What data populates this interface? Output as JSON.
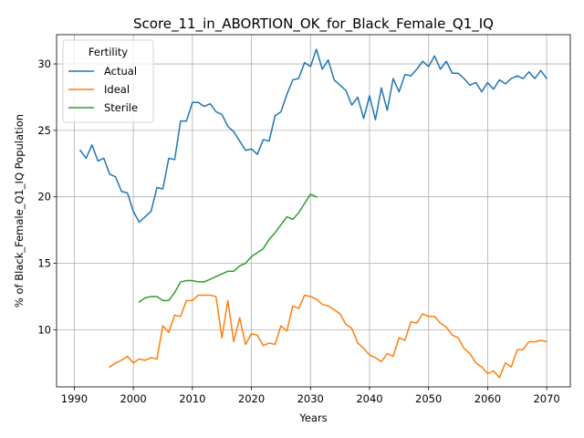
{
  "chart_data": {
    "type": "line",
    "title": "Score_11_in_ABORTION_OK_for_Black_Female_Q1_IQ",
    "xlabel": "Years",
    "ylabel": "% of Black_Female_Q1_IQ Population",
    "xlim": [
      1987,
      2074
    ],
    "ylim": [
      5.7,
      32.2
    ],
    "xticks": [
      1990,
      2000,
      2010,
      2020,
      2030,
      2040,
      2050,
      2060,
      2070
    ],
    "yticks": [
      10,
      15,
      20,
      25,
      30
    ],
    "grid": true,
    "legend": {
      "title": "Fertility",
      "position": "upper-left"
    },
    "series": [
      {
        "name": "Actual",
        "color": "#1f77b4",
        "x": [
          1991,
          1992,
          1993,
          1994,
          1995,
          1996,
          1997,
          1998,
          1999,
          2000,
          2001,
          2002,
          2003,
          2004,
          2005,
          2006,
          2007,
          2008,
          2009,
          2010,
          2011,
          2012,
          2013,
          2014,
          2015,
          2016,
          2017,
          2018,
          2019,
          2020,
          2021,
          2022,
          2023,
          2024,
          2025,
          2026,
          2027,
          2028,
          2029,
          2030,
          2031,
          2032,
          2033,
          2034,
          2035,
          2036,
          2037,
          2038,
          2039,
          2040,
          2041,
          2042,
          2043,
          2044,
          2045,
          2046,
          2047,
          2048,
          2049,
          2050,
          2051,
          2052,
          2053,
          2054,
          2055,
          2056,
          2057,
          2058,
          2059,
          2060,
          2061,
          2062,
          2063,
          2064,
          2065,
          2066,
          2067,
          2068,
          2069,
          2070
        ],
        "values": [
          23.5,
          22.9,
          23.9,
          22.7,
          22.9,
          21.7,
          21.5,
          20.4,
          20.3,
          18.9,
          18.1,
          18.5,
          18.9,
          20.7,
          20.6,
          22.9,
          22.8,
          25.7,
          25.7,
          27.1,
          27.1,
          26.8,
          27.0,
          26.4,
          26.2,
          25.3,
          24.9,
          24.2,
          23.5,
          23.6,
          23.2,
          24.3,
          24.2,
          26.1,
          26.4,
          27.7,
          28.8,
          28.9,
          30.1,
          29.8,
          31.1,
          29.6,
          30.3,
          28.8,
          28.4,
          28.0,
          26.9,
          27.5,
          25.9,
          27.6,
          25.8,
          28.2,
          26.5,
          28.9,
          27.9,
          29.2,
          29.1,
          29.6,
          30.2,
          29.8,
          30.6,
          29.6,
          30.2,
          29.3,
          29.3,
          28.9,
          28.4,
          28.6,
          27.9,
          28.6,
          28.1,
          28.8,
          28.5,
          28.9,
          29.1,
          28.9,
          29.4,
          28.9,
          29.5,
          28.9
        ]
      },
      {
        "name": "Ideal",
        "color": "#ff7f0e",
        "x": [
          1996,
          1997,
          1998,
          1999,
          2000,
          2001,
          2002,
          2003,
          2004,
          2005,
          2006,
          2007,
          2008,
          2009,
          2010,
          2011,
          2012,
          2013,
          2014,
          2015,
          2016,
          2017,
          2018,
          2019,
          2020,
          2021,
          2022,
          2023,
          2024,
          2025,
          2026,
          2027,
          2028,
          2029,
          2030,
          2031,
          2032,
          2033,
          2034,
          2035,
          2036,
          2037,
          2038,
          2039,
          2040,
          2041,
          2042,
          2043,
          2044,
          2045,
          2046,
          2047,
          2048,
          2049,
          2050,
          2051,
          2052,
          2053,
          2054,
          2055,
          2056,
          2057,
          2058,
          2059,
          2060,
          2061,
          2062,
          2063,
          2064,
          2065,
          2066,
          2067,
          2068,
          2069,
          2070
        ],
        "values": [
          7.2,
          7.5,
          7.7,
          8.0,
          7.5,
          7.8,
          7.7,
          7.9,
          7.8,
          10.3,
          9.8,
          11.1,
          11.0,
          12.2,
          12.2,
          12.6,
          12.6,
          12.6,
          12.5,
          9.4,
          12.2,
          9.1,
          10.9,
          8.9,
          9.7,
          9.6,
          8.8,
          9.0,
          8.9,
          10.3,
          9.9,
          11.8,
          11.6,
          12.6,
          12.5,
          12.3,
          11.9,
          11.8,
          11.5,
          11.2,
          10.4,
          10.1,
          9.0,
          8.6,
          8.1,
          7.9,
          7.6,
          8.2,
          8.0,
          9.4,
          9.2,
          10.6,
          10.5,
          11.2,
          11.0,
          11.0,
          10.5,
          10.2,
          9.6,
          9.4,
          8.6,
          8.2,
          7.5,
          7.2,
          6.7,
          6.9,
          6.4,
          7.5,
          7.2,
          8.5,
          8.5,
          9.1,
          9.1,
          9.2,
          9.1
        ]
      },
      {
        "name": "Sterile",
        "color": "#2ca02c",
        "x": [
          2001,
          2002,
          2003,
          2004,
          2005,
          2006,
          2007,
          2008,
          2009,
          2010,
          2011,
          2012,
          2013,
          2014,
          2015,
          2016,
          2017,
          2018,
          2019,
          2020,
          2021,
          2022,
          2023,
          2024,
          2025,
          2026,
          2027,
          2028,
          2029,
          2030,
          2031
        ],
        "values": [
          12.1,
          12.4,
          12.5,
          12.5,
          12.2,
          12.2,
          12.8,
          13.6,
          13.7,
          13.7,
          13.6,
          13.6,
          13.8,
          14.0,
          14.2,
          14.4,
          14.4,
          14.8,
          15.0,
          15.5,
          15.8,
          16.1,
          16.8,
          17.3,
          17.9,
          18.5,
          18.3,
          18.8,
          19.5,
          20.2,
          20.0
        ]
      }
    ]
  }
}
